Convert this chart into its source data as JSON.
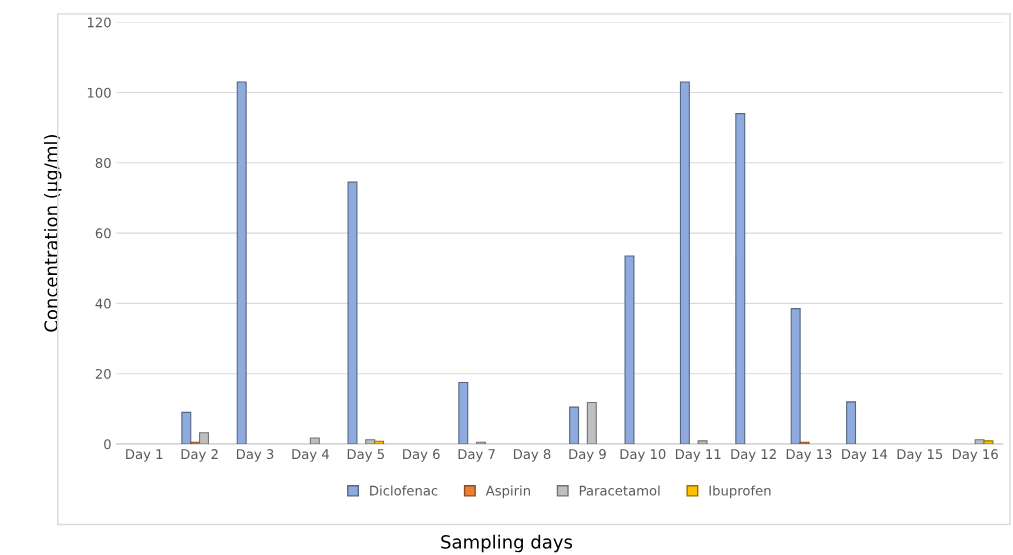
{
  "chart_data": {
    "type": "bar",
    "xlabel": "Sampling days",
    "ylabel": "Concentration (µg/ml)",
    "categories": [
      "Day 1",
      "Day 2",
      "Day 3",
      "Day 4",
      "Day 5",
      "Day 6",
      "Day 7",
      "Day 8",
      "Day 9",
      "Day 10",
      "Day 11",
      "Day 12",
      "Day 13",
      "Day 14",
      "Day 15",
      "Day 16"
    ],
    "series": [
      {
        "name": "Diclofenac",
        "color": "#8faadc",
        "values": [
          null,
          9,
          103,
          null,
          74.5,
          null,
          17.5,
          null,
          10.5,
          53.5,
          103,
          94,
          38.5,
          12,
          null,
          null
        ]
      },
      {
        "name": "Aspirin",
        "color": "#ed7d31",
        "values": [
          null,
          0.5,
          null,
          null,
          null,
          null,
          null,
          null,
          null,
          null,
          null,
          null,
          0.5,
          null,
          null,
          null
        ]
      },
      {
        "name": "Paracetamol",
        "color": "#bfbfbf",
        "values": [
          null,
          3.2,
          null,
          1.7,
          1.2,
          null,
          0.5,
          null,
          11.8,
          null,
          0.9,
          null,
          null,
          null,
          null,
          1.2
        ]
      },
      {
        "name": "Ibuprofen",
        "color": "#ffc000",
        "values": [
          null,
          null,
          null,
          null,
          0.8,
          null,
          null,
          null,
          null,
          null,
          null,
          null,
          null,
          null,
          null,
          0.9
        ]
      }
    ],
    "ylim": [
      0,
      120
    ],
    "yticks": [
      0,
      20,
      40,
      60,
      80,
      100,
      120
    ],
    "grid": "y",
    "legend": "bottom"
  }
}
